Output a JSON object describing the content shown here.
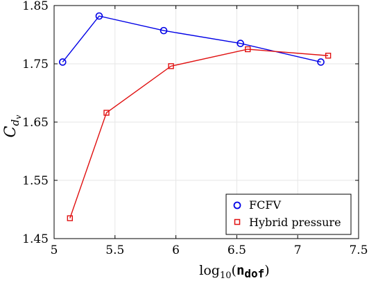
{
  "chart_data": {
    "type": "line",
    "xlabel": {
      "prefix": "log",
      "sub": "10",
      "open": "(",
      "var": "n",
      "var_sub": "dof",
      "close": ")"
    },
    "ylabel": {
      "main": "C",
      "sub": "d",
      "subsub": "v"
    },
    "xlim": [
      5,
      7.5
    ],
    "ylim": [
      1.45,
      1.85
    ],
    "xticks": [
      5,
      5.5,
      6,
      6.5,
      7,
      7.5
    ],
    "xtick_labels": [
      "5",
      "5.5",
      "6",
      "6.5",
      "7",
      "7.5"
    ],
    "yticks": [
      1.45,
      1.55,
      1.65,
      1.75,
      1.85
    ],
    "ytick_labels": [
      "1.45",
      "1.55",
      "1.65",
      "1.75",
      "1.85"
    ],
    "grid": true,
    "legend_position": "bottom-right",
    "series": [
      {
        "name": "FCFV",
        "color": "#0000e6",
        "marker": "circle",
        "x": [
          5.07,
          5.37,
          5.9,
          6.53,
          7.19
        ],
        "y": [
          1.753,
          1.832,
          1.807,
          1.785,
          1.753
        ]
      },
      {
        "name": "Hybrid pressure",
        "color": "#e01010",
        "marker": "square",
        "x": [
          5.13,
          5.43,
          5.96,
          6.59,
          7.25
        ],
        "y": [
          1.485,
          1.666,
          1.746,
          1.775,
          1.764
        ]
      }
    ]
  }
}
